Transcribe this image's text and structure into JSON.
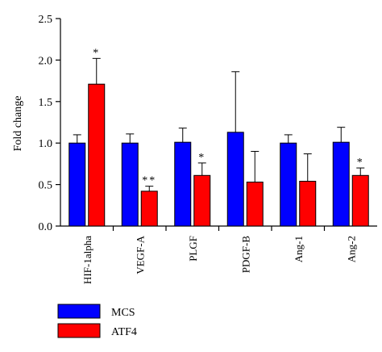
{
  "chart_data": {
    "type": "bar",
    "ylabel": "Fold change",
    "ylim": [
      0,
      2.5
    ],
    "yticks": [
      "0.0",
      "0.5",
      "1.0",
      "1.5",
      "2.0",
      "2.5"
    ],
    "categories": [
      "HIF-1alpha",
      "VEGF-A",
      "PLGF",
      "PDGF-B",
      "Ang-1",
      "Ang-2"
    ],
    "series": [
      {
        "name": "MCS",
        "color": "#0000ff",
        "values": [
          1.0,
          1.0,
          1.01,
          1.13,
          1.0,
          1.01
        ],
        "errors": [
          0.1,
          0.11,
          0.17,
          0.73,
          0.1,
          0.18
        ],
        "annotations": [
          "",
          "",
          "",
          "",
          "",
          ""
        ]
      },
      {
        "name": "ATF4",
        "color": "#ff0000",
        "values": [
          1.71,
          0.42,
          0.61,
          0.53,
          0.54,
          0.61
        ],
        "errors": [
          0.31,
          0.06,
          0.15,
          0.37,
          0.33,
          0.09
        ],
        "annotations": [
          "*",
          "**",
          "*",
          "",
          "",
          "*"
        ]
      }
    ]
  }
}
